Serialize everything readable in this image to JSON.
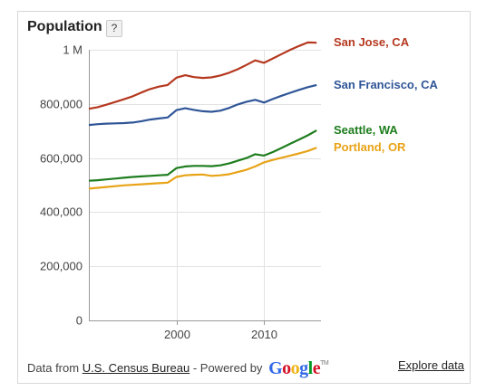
{
  "header": {
    "title": "Population",
    "help_label": "?"
  },
  "footer": {
    "data_from": "Data from",
    "source_link": "U.S. Census Bureau",
    "powered_by": "- Powered by",
    "google_letters": [
      {
        "ch": "G",
        "color": "#3369e8"
      },
      {
        "ch": "o",
        "color": "#d50f25"
      },
      {
        "ch": "o",
        "color": "#eeb211"
      },
      {
        "ch": "g",
        "color": "#3369e8"
      },
      {
        "ch": "l",
        "color": "#009925"
      },
      {
        "ch": "e",
        "color": "#d50f25"
      }
    ],
    "google_tm": "TM",
    "explore_link": "Explore data"
  },
  "chart_data": {
    "type": "line",
    "title": "Population",
    "xlim": [
      1990,
      2016.5
    ],
    "ylim": [
      0,
      1000000
    ],
    "x_ticks": [
      {
        "value": 2000,
        "label": "2000"
      },
      {
        "value": 2010,
        "label": "2010"
      }
    ],
    "y_ticks": [
      {
        "value": 0,
        "label": "0"
      },
      {
        "value": 200000,
        "label": "200,000"
      },
      {
        "value": 400000,
        "label": "400,000"
      },
      {
        "value": 600000,
        "label": "600,000"
      },
      {
        "value": 800000,
        "label": "800,000"
      },
      {
        "value": 1000000,
        "label": "1 M"
      }
    ],
    "grid": true,
    "legend": "right",
    "x": [
      1990,
      1991,
      1992,
      1993,
      1994,
      1995,
      1996,
      1997,
      1998,
      1999,
      2000,
      2001,
      2002,
      2003,
      2004,
      2005,
      2006,
      2007,
      2008,
      2009,
      2010,
      2011,
      2012,
      2013,
      2014,
      2015,
      2016
    ],
    "series": [
      {
        "name": "San Jose, CA",
        "color": "#b5381f",
        "values": [
          782000,
          788000,
          797000,
          807000,
          817000,
          828000,
          842000,
          855000,
          864000,
          870000,
          897000,
          906000,
          899000,
          896000,
          898000,
          905000,
          915000,
          928000,
          944000,
          961000,
          952000,
          968000,
          984000,
          1000000,
          1014000,
          1027000,
          1026000
        ]
      },
      {
        "name": "San Francisco, CA",
        "color": "#2f5597",
        "values": [
          722000,
          725000,
          727000,
          728000,
          729000,
          731000,
          736000,
          742000,
          746000,
          750000,
          777000,
          784000,
          778000,
          773000,
          771000,
          775000,
          785000,
          798000,
          808000,
          815000,
          805000,
          818000,
          830000,
          841000,
          852000,
          862000,
          870000
        ]
      },
      {
        "name": "Seattle, WA",
        "color": "#1e7d1e",
        "values": [
          516000,
          518000,
          521000,
          524000,
          527000,
          530000,
          532000,
          534000,
          536000,
          538000,
          563000,
          569000,
          571000,
          571000,
          570000,
          573000,
          580000,
          590000,
          600000,
          614000,
          609000,
          622000,
          637000,
          653000,
          668000,
          684000,
          702000
        ]
      },
      {
        "name": "Portland, OR",
        "color": "#e8a317",
        "values": [
          487000,
          490000,
          493000,
          496000,
          499000,
          501000,
          503000,
          505000,
          507000,
          509000,
          530000,
          536000,
          538000,
          539000,
          534000,
          536000,
          540000,
          548000,
          557000,
          569000,
          584000,
          593000,
          601000,
          609000,
          617000,
          626000,
          638000
        ]
      }
    ]
  }
}
